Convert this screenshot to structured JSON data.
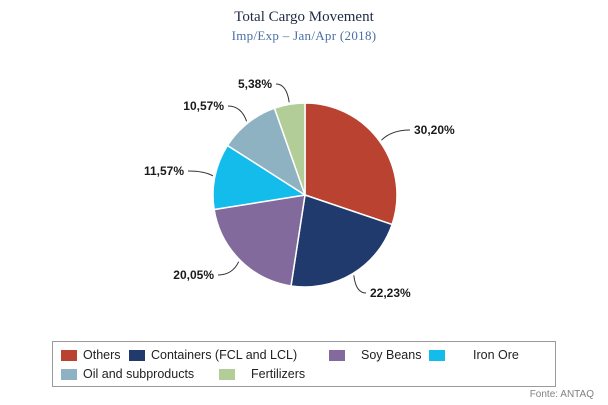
{
  "chart_data": {
    "type": "pie",
    "title": "Total Cargo Movement",
    "subtitle": "Imp/Exp – Jan/Apr (2018)",
    "slices": [
      {
        "name": "Others",
        "value": 30.2,
        "label": "30,20%",
        "color": "#b94230"
      },
      {
        "name": "Containers (FCL and LCL)",
        "value": 22.23,
        "label": "22,23%",
        "color": "#213a6e"
      },
      {
        "name": "Soy Beans",
        "value": 20.05,
        "label": "20,05%",
        "color": "#826a9c"
      },
      {
        "name": "Iron Ore",
        "value": 11.57,
        "label": "11,57%",
        "color": "#13bcea"
      },
      {
        "name": "Oil and subproducts",
        "value": 10.57,
        "label": "10,57%",
        "color": "#8fb2c2"
      },
      {
        "name": "Fertilizers",
        "value": 5.38,
        "label": "5,38%",
        "color": "#b3cd99"
      }
    ],
    "legend_position": "bottom",
    "source": "Fonte: ANTAQ"
  }
}
